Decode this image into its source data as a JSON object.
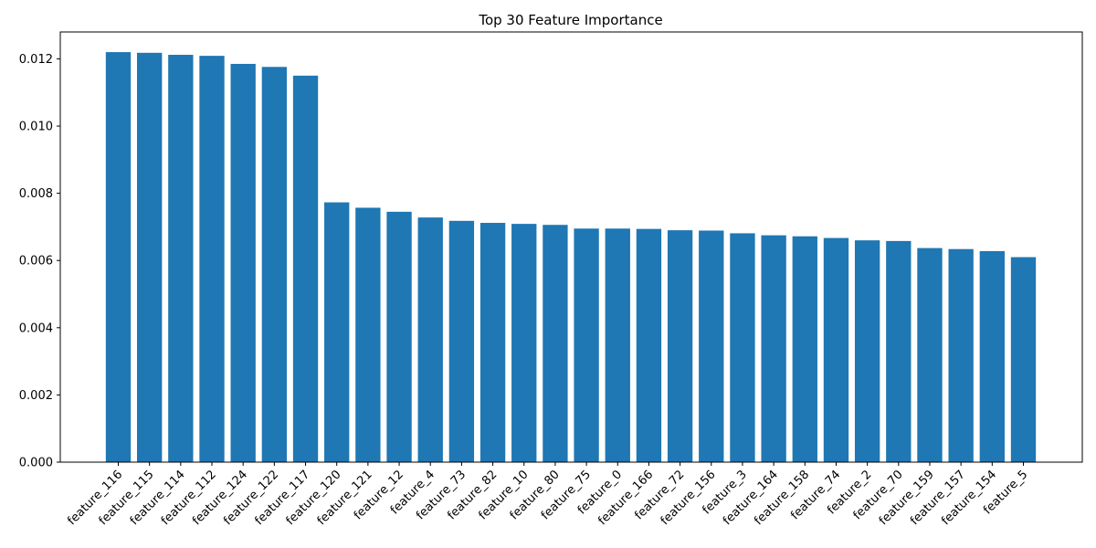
{
  "chart_data": {
    "type": "bar",
    "title": "Top 30 Feature Importance",
    "xlabel": "",
    "ylabel": "",
    "ylim": [
      0,
      0.0128
    ],
    "yticks": [
      "0.000",
      "0.002",
      "0.004",
      "0.006",
      "0.008",
      "0.010",
      "0.012"
    ],
    "ytick_values": [
      0,
      0.002,
      0.004,
      0.006,
      0.008,
      0.01,
      0.012
    ],
    "grid": false,
    "bar_color": "#1f77b4",
    "categories": [
      "feature_116",
      "feature_115",
      "feature_114",
      "feature_112",
      "feature_124",
      "feature_122",
      "feature_117",
      "feature_120",
      "feature_121",
      "feature_12",
      "feature_4",
      "feature_73",
      "feature_82",
      "feature_10",
      "feature_80",
      "feature_75",
      "feature_0",
      "feature_166",
      "feature_72",
      "feature_156",
      "feature_3",
      "feature_164",
      "feature_158",
      "feature_74",
      "feature_2",
      "feature_70",
      "feature_159",
      "feature_157",
      "feature_154",
      "feature_5"
    ],
    "values": [
      0.0122,
      0.01218,
      0.01212,
      0.01209,
      0.01185,
      0.01176,
      0.0115,
      0.00773,
      0.00757,
      0.00745,
      0.00728,
      0.00718,
      0.00712,
      0.00709,
      0.00706,
      0.00695,
      0.00695,
      0.00694,
      0.0069,
      0.00689,
      0.00681,
      0.00675,
      0.00672,
      0.00667,
      0.0066,
      0.00658,
      0.00637,
      0.00634,
      0.00628,
      0.0061
    ]
  }
}
